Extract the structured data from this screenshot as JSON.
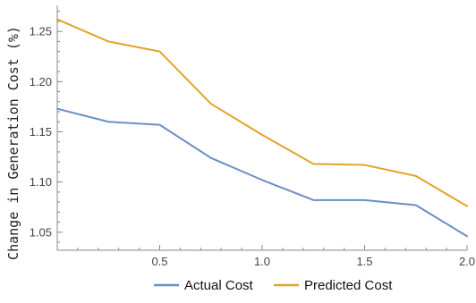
{
  "chart_data": {
    "type": "line",
    "title": "",
    "xlabel": "",
    "ylabel": "Change in Generation Cost (%)",
    "xlim": [
      0,
      2.0
    ],
    "ylim": [
      1.032,
      1.276
    ],
    "x_ticks": [
      "0.5",
      "1.0",
      "1.5",
      "2.0"
    ],
    "x_tick_values": [
      0.5,
      1.0,
      1.5,
      2.0
    ],
    "y_ticks": [
      "1.05",
      "1.10",
      "1.15",
      "1.20",
      "1.25"
    ],
    "y_tick_values": [
      1.05,
      1.1,
      1.15,
      1.2,
      1.25
    ],
    "grid": false,
    "legend_position": "bottom",
    "x": [
      0,
      0.25,
      0.5,
      0.75,
      1.0,
      1.25,
      1.5,
      1.75,
      2.0
    ],
    "series": [
      {
        "name": "Actual Cost",
        "color": "#6a8fc4",
        "values": [
          1.173,
          1.16,
          1.157,
          1.124,
          1.102,
          1.082,
          1.082,
          1.077,
          1.046
        ]
      },
      {
        "name": "Predicted Cost",
        "color": "#e3a32b",
        "values": [
          1.262,
          1.24,
          1.23,
          1.178,
          1.147,
          1.118,
          1.117,
          1.106,
          1.076
        ]
      }
    ]
  }
}
